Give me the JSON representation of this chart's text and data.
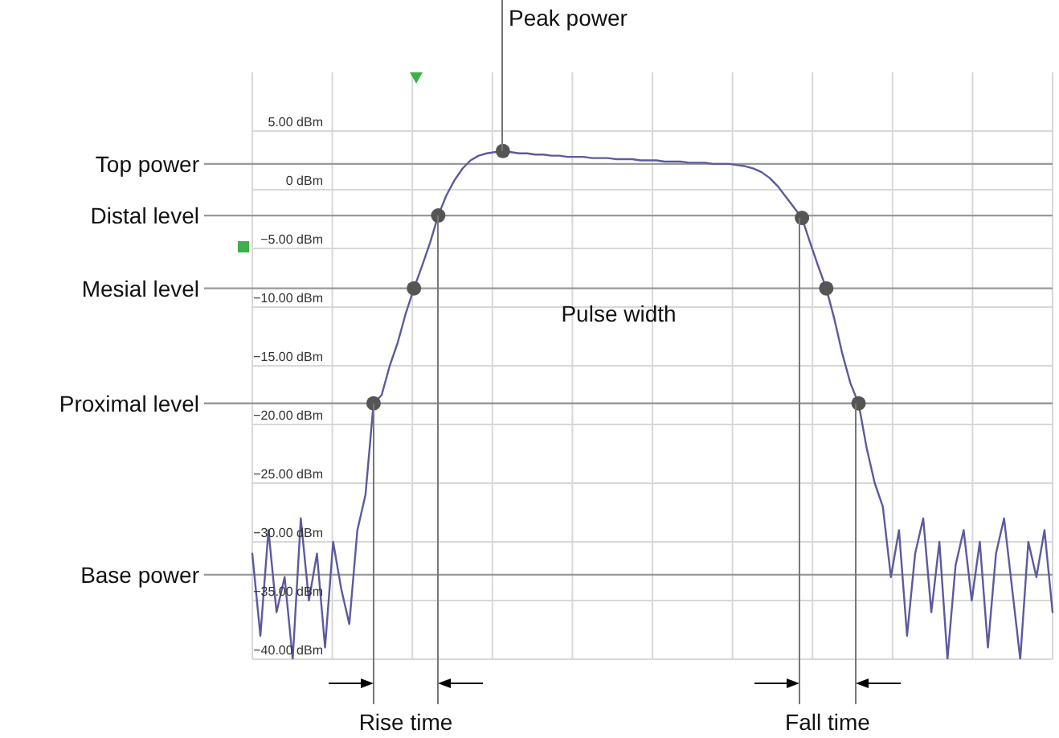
{
  "chart_data": {
    "type": "line",
    "categories": [
      null,
      null,
      null,
      null,
      null,
      null,
      null,
      null,
      null,
      null,
      null,
      null,
      null,
      null,
      null,
      null,
      null,
      null,
      null,
      null,
      null,
      null,
      null,
      null,
      null,
      null,
      null,
      null,
      null,
      null,
      null,
      null,
      null,
      null,
      null,
      null,
      null,
      null,
      null,
      null,
      null,
      null,
      null,
      null,
      null,
      null,
      null,
      null,
      null,
      null,
      null,
      null,
      null,
      null,
      null,
      null,
      null,
      null,
      null,
      null,
      null,
      null,
      null,
      null,
      null,
      null,
      null,
      null,
      null,
      null,
      null,
      null,
      null,
      null,
      null,
      null,
      null,
      null,
      null,
      null,
      null,
      null,
      null,
      null,
      null,
      null,
      null,
      null,
      null,
      null,
      null,
      null,
      null,
      null,
      null,
      null,
      null,
      null,
      null,
      null
    ],
    "series": [
      {
        "color": "#5c5a9e",
        "values": [
          -31,
          -38,
          -29,
          -36,
          -33,
          -40,
          -28,
          -35,
          -31,
          -39,
          -30,
          -34,
          -37,
          -29,
          -26,
          -18.2,
          -17.5,
          -15,
          -13,
          -10.5,
          -8.4,
          -6.5,
          -4.5,
          -2.2,
          -0.5,
          0.8,
          1.8,
          2.5,
          2.9,
          3.1,
          3.2,
          3.3,
          3.2,
          3.1,
          3.1,
          3,
          3,
          2.9,
          2.9,
          2.8,
          2.8,
          2.8,
          2.7,
          2.7,
          2.7,
          2.6,
          2.6,
          2.6,
          2.5,
          2.5,
          2.5,
          2.4,
          2.4,
          2.4,
          2.3,
          2.3,
          2.3,
          2.2,
          2.2,
          2.2,
          2.1,
          2,
          1.8,
          1.5,
          1,
          0.3,
          -0.6,
          -1.5,
          -2.4,
          -4.5,
          -6.5,
          -8.4,
          -11,
          -14,
          -16.5,
          -18.2,
          -22,
          -25,
          -27,
          -33,
          -29,
          -38,
          -31,
          -28,
          -36,
          -30,
          -40,
          -32,
          -29,
          -35,
          -30,
          -39,
          -31,
          -28,
          -34,
          -40,
          -30,
          -33,
          -29,
          -36
        ]
      },
      {
        "type": "scatter",
        "color": "#555555",
        "marker": "circle",
        "values": [
          null,
          null,
          null,
          null,
          null,
          null,
          null,
          null,
          null,
          null,
          null,
          null,
          null,
          null,
          null,
          -18.2,
          null,
          null,
          null,
          null,
          -8.4,
          null,
          null,
          -2.2,
          null,
          null,
          null,
          null,
          null,
          null,
          null,
          3.3,
          null,
          null,
          null,
          null,
          null,
          null,
          null,
          null,
          null,
          null,
          null,
          null,
          null,
          null,
          null,
          null,
          null,
          null,
          null,
          null,
          null,
          null,
          null,
          null,
          null,
          null,
          null,
          null,
          null,
          null,
          null,
          null,
          null,
          null,
          null,
          null,
          -2.4,
          null,
          null,
          -8.4,
          null,
          null,
          null,
          -18.2,
          null,
          null,
          null,
          null,
          null,
          null,
          null,
          null,
          null,
          null,
          null,
          null,
          null,
          null,
          null,
          null,
          null,
          null,
          null,
          null,
          null,
          null,
          null,
          null
        ]
      }
    ],
    "ylim": [
      -40,
      10
    ],
    "yticks": [
      {
        "value": 5,
        "label": "5.00 dBm"
      },
      {
        "value": 0,
        "label": "0 dBm"
      },
      {
        "value": -5,
        "label": "−5.00 dBm"
      },
      {
        "value": -10,
        "label": "−10.00 dBm"
      },
      {
        "value": -15,
        "label": "−15.00 dBm"
      },
      {
        "value": -20,
        "label": "−20.00 dBm"
      },
      {
        "value": -25,
        "label": "−25.00 dBm"
      },
      {
        "value": -30,
        "label": "−30.00 dBm"
      },
      {
        "value": -35,
        "label": "−35.00 dBm"
      },
      {
        "value": -40,
        "label": "−40.00 dBm"
      }
    ],
    "ref_lines": [
      {
        "axis": "y",
        "value": 2.2,
        "label": "Top power",
        "color": "#999999"
      },
      {
        "axis": "y",
        "value": -2.2,
        "label": "Distal level",
        "color": "#999999"
      },
      {
        "axis": "y",
        "value": -8.4,
        "label": "Mesial level",
        "color": "#999999"
      },
      {
        "axis": "y",
        "value": -18.2,
        "label": "Proximal level",
        "color": "#999999"
      },
      {
        "axis": "y",
        "value": -32.8,
        "label": "Base power",
        "color": "#999999"
      }
    ],
    "annotations": [
      "Peak power",
      "Pulse width",
      "Rise time",
      "Fall time"
    ],
    "grid": true,
    "marker": "none",
    "line_style": "solid"
  }
}
